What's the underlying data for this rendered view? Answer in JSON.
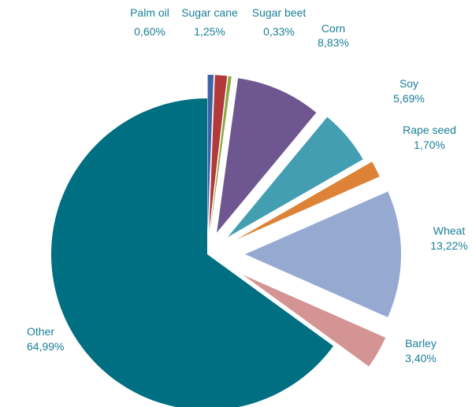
{
  "chart_data": {
    "type": "pie",
    "slices": [
      {
        "name": "Palm oil",
        "value": 0.6,
        "label": "0,60%",
        "color": "#3b63a6"
      },
      {
        "name": "Sugar cane",
        "value": 1.25,
        "label": "1,25%",
        "color": "#b23a3a"
      },
      {
        "name": "Sugar beet",
        "value": 0.33,
        "label": "0,33%",
        "color": "#8aaa44"
      },
      {
        "name": "Corn",
        "value": 8.83,
        "label": "8,83%",
        "color": "#6e5690"
      },
      {
        "name": "Soy",
        "value": 5.69,
        "label": "5,69%",
        "color": "#449eb2"
      },
      {
        "name": "Rape seed",
        "value": 1.7,
        "label": "1,70%",
        "color": "#dd8236"
      },
      {
        "name": "Wheat",
        "value": 13.22,
        "label": "13,22%",
        "color": "#96aad1"
      },
      {
        "name": "Barley",
        "value": 3.4,
        "label": "3,40%",
        "color": "#d49494"
      },
      {
        "name": "Other",
        "value": 64.99,
        "label": "64,99%",
        "color": "#006f82"
      }
    ]
  }
}
